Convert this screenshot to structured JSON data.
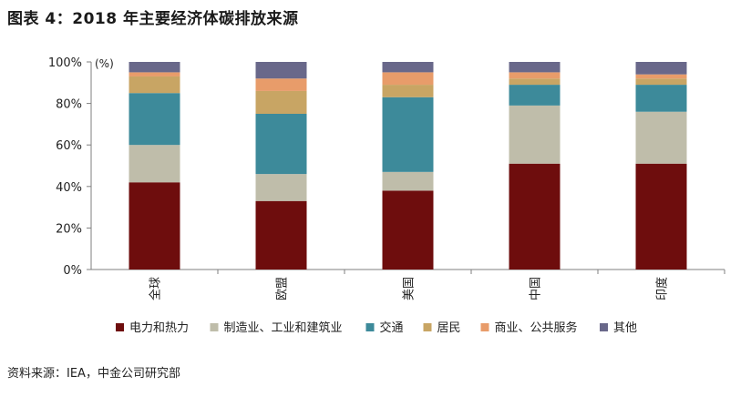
{
  "figure": {
    "title": "图表 4：2018 年主要经济体碳排放来源",
    "source": "资料来源：IEA，中金公司研究部"
  },
  "chart_data": {
    "type": "bar",
    "stacked": true,
    "unit_label": "(%)",
    "categories": [
      "全球",
      "欧盟",
      "美国",
      "中国",
      "印度"
    ],
    "series": [
      {
        "name": "电力和热力",
        "color": "#6e0d0d",
        "values": [
          42,
          33,
          38,
          51,
          51
        ]
      },
      {
        "name": "制造业、工业和建筑业",
        "color": "#bfbdaa",
        "values": [
          18,
          13,
          9,
          28,
          25
        ]
      },
      {
        "name": "交通",
        "color": "#3d8a9a",
        "values": [
          25,
          29,
          36,
          10,
          13
        ]
      },
      {
        "name": "居民",
        "color": "#c8a564",
        "values": [
          8,
          11,
          6,
          3,
          3
        ]
      },
      {
        "name": "商业、公共服务",
        "color": "#e89c6a",
        "values": [
          2,
          6,
          6,
          3,
          2
        ]
      },
      {
        "name": "其他",
        "color": "#69688a",
        "values": [
          5,
          8,
          5,
          5,
          6
        ]
      }
    ],
    "ylim": [
      0,
      100
    ],
    "yticks": [
      "0%",
      "20%",
      "40%",
      "60%",
      "80%",
      "100%"
    ],
    "grid": false,
    "legend_position": "bottom"
  }
}
